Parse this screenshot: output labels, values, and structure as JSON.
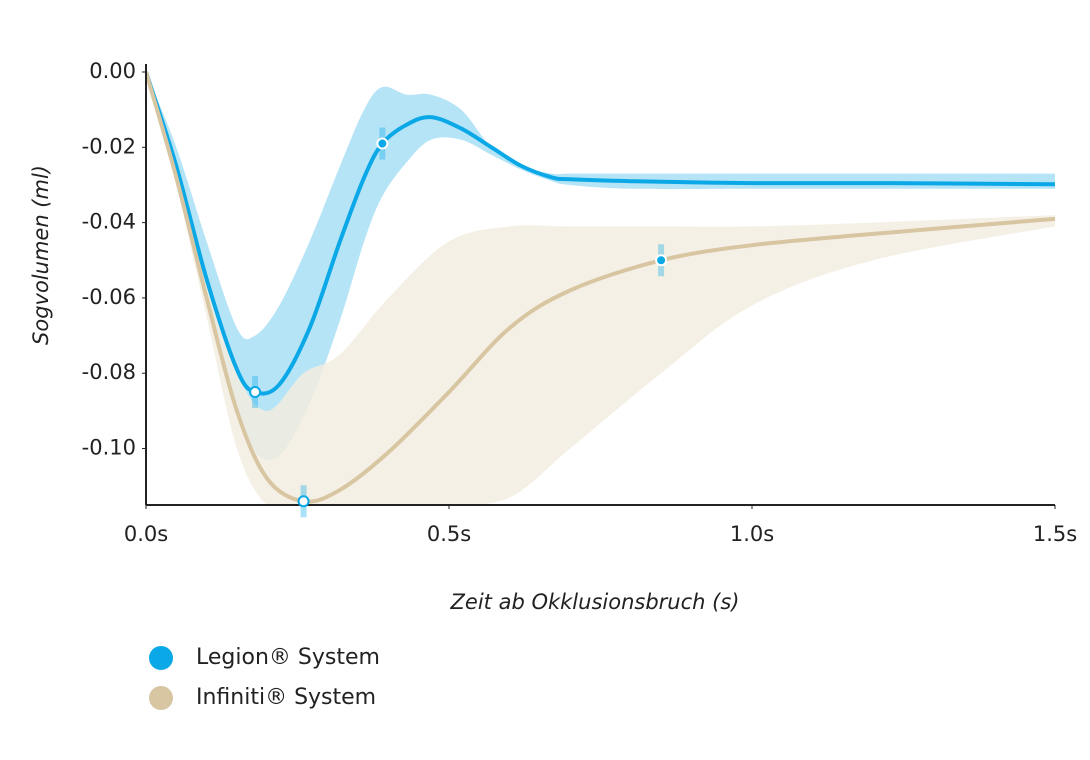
{
  "chart_data": {
    "type": "line",
    "y_label": "Sogvolumen (ml)",
    "x_label": "Zeit ab Okklusionsbruch (s)",
    "xlim": [
      0,
      1.5
    ],
    "xticks": [
      {
        "value": 0,
        "label": "0.0s"
      },
      {
        "value": 0.5,
        "label": "0.5s"
      },
      {
        "value": 1.0,
        "label": "1.0s"
      },
      {
        "value": 1.5,
        "label": "1.5s"
      }
    ],
    "ylim": [
      -0.115,
      0
    ],
    "yticks": [
      {
        "value": 0,
        "label": "0.00"
      },
      {
        "value": -0.02,
        "label": "-0.02"
      },
      {
        "value": -0.04,
        "label": "-0.04"
      },
      {
        "value": -0.06,
        "label": "-0.06"
      },
      {
        "value": -0.08,
        "label": "-0.08"
      },
      {
        "value": -0.1,
        "label": "-0.10"
      }
    ],
    "series": [
      {
        "name": "Legion® System",
        "color": "#0aa8e6",
        "band_color": "#8fd6f3",
        "x": [
          0,
          0.05,
          0.1,
          0.15,
          0.18,
          0.22,
          0.27,
          0.32,
          0.36,
          0.39,
          0.43,
          0.47,
          0.52,
          0.57,
          0.62,
          0.67,
          0.7,
          0.8,
          1.0,
          1.2,
          1.5
        ],
        "values": [
          0,
          -0.025,
          -0.055,
          -0.079,
          -0.085,
          -0.083,
          -0.068,
          -0.045,
          -0.028,
          -0.019,
          -0.014,
          -0.012,
          -0.015,
          -0.02,
          -0.025,
          -0.028,
          -0.0285,
          -0.029,
          -0.0295,
          -0.0295,
          -0.0298
        ],
        "upper": [
          0,
          -0.02,
          -0.045,
          -0.068,
          -0.07,
          -0.062,
          -0.045,
          -0.025,
          -0.01,
          -0.004,
          -0.006,
          -0.006,
          -0.01,
          -0.02,
          -0.025,
          -0.027,
          -0.027,
          -0.027,
          -0.027,
          -0.027,
          -0.027
        ],
        "lower": [
          0,
          -0.028,
          -0.06,
          -0.09,
          -0.101,
          -0.102,
          -0.088,
          -0.066,
          -0.045,
          -0.033,
          -0.024,
          -0.018,
          -0.018,
          -0.022,
          -0.026,
          -0.029,
          -0.03,
          -0.031,
          -0.031,
          -0.031,
          -0.031
        ],
        "markers": {
          "x": [
            0.18,
            0.39
          ],
          "y": [
            -0.085,
            -0.019
          ]
        }
      },
      {
        "name": "Infiniti® System",
        "color": "#d8c5a1",
        "band_color": "#f3ede1",
        "x": [
          0,
          0.05,
          0.1,
          0.15,
          0.2,
          0.26,
          0.32,
          0.4,
          0.5,
          0.6,
          0.7,
          0.85,
          1.0,
          1.2,
          1.5
        ],
        "values": [
          0,
          -0.028,
          -0.06,
          -0.09,
          -0.108,
          -0.114,
          -0.111,
          -0.101,
          -0.085,
          -0.068,
          -0.058,
          -0.05,
          -0.046,
          -0.043,
          -0.039
        ],
        "upper": [
          0,
          -0.025,
          -0.055,
          -0.08,
          -0.09,
          -0.08,
          -0.075,
          -0.06,
          -0.045,
          -0.041,
          -0.041,
          -0.041,
          -0.041,
          -0.04,
          -0.038
        ],
        "lower": [
          0,
          -0.03,
          -0.065,
          -0.1,
          -0.115,
          -0.115,
          -0.115,
          -0.115,
          -0.115,
          -0.113,
          -0.1,
          -0.08,
          -0.062,
          -0.05,
          -0.041
        ],
        "markers": {
          "x": [
            0.26,
            0.85
          ],
          "y": [
            -0.114,
            -0.05
          ]
        }
      }
    ]
  }
}
